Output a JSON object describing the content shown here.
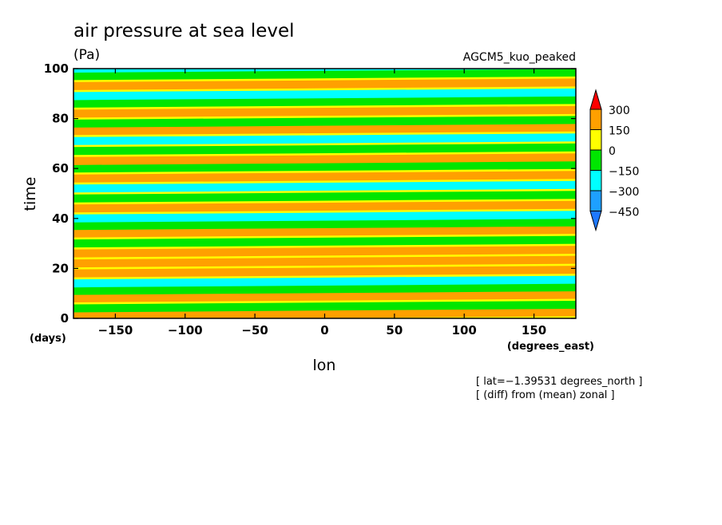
{
  "chart_data": {
    "type": "heatmap",
    "title": "air pressure at sea level",
    "units": "(Pa)",
    "model": "AGCM5_kuo_peaked",
    "xlabel": "lon",
    "ylabel": "time",
    "x_units": "(degrees_east)",
    "y_units": "(days)",
    "xlim": [
      -180,
      180
    ],
    "ylim": [
      0,
      100
    ],
    "x_ticks": [
      -150,
      -100,
      -50,
      0,
      50,
      100,
      150
    ],
    "x_tick_labels": [
      "−150",
      "−100",
      "−50",
      "0",
      "50",
      "100",
      "150"
    ],
    "y_ticks": [
      0,
      20,
      40,
      60,
      80,
      100
    ],
    "y_tick_labels": [
      "0",
      "20",
      "40",
      "60",
      "80",
      "100"
    ],
    "notes": [
      "[ lat=−1.39531 degrees_north ]",
      "[ (diff) from (mean) zonal ]"
    ],
    "colorbar": {
      "levels": [
        -450,
        -300,
        -150,
        0,
        150,
        300
      ],
      "level_labels": [
        "−450",
        "−300",
        "−150",
        "0",
        "150",
        "300"
      ],
      "colors": [
        "#1e78ff",
        "#1ea0ff",
        "#00ffff",
        "#00e600",
        "#ffff00",
        "#ffa000",
        "#ff0000"
      ],
      "extend": "both"
    },
    "pattern": "eastward-propagating anomaly bands; values mostly between -150 and 150 Pa",
    "band_slope_deg_per_day": 30,
    "bands": [
      {
        "t0": 1,
        "value": 150
      },
      {
        "t0": 4,
        "value": -150
      },
      {
        "t0": 8,
        "value": 150
      },
      {
        "t0": 11,
        "value": -150
      },
      {
        "t0": 14,
        "value": -300
      },
      {
        "t0": 18,
        "value": 150
      },
      {
        "t0": 22,
        "value": 150
      },
      {
        "t0": 26,
        "value": 150
      },
      {
        "t0": 30,
        "value": -150
      },
      {
        "t0": 34,
        "value": 150
      },
      {
        "t0": 37,
        "value": -150
      },
      {
        "t0": 40,
        "value": -300
      },
      {
        "t0": 44,
        "value": 150
      },
      {
        "t0": 48,
        "value": -150
      },
      {
        "t0": 52,
        "value": -300
      },
      {
        "t0": 56,
        "value": 150
      },
      {
        "t0": 60,
        "value": -150
      },
      {
        "t0": 63,
        "value": 150
      },
      {
        "t0": 67,
        "value": -150
      },
      {
        "t0": 71,
        "value": -300
      },
      {
        "t0": 75,
        "value": 150
      },
      {
        "t0": 78,
        "value": -150
      },
      {
        "t0": 82,
        "value": 150
      },
      {
        "t0": 86,
        "value": -150
      },
      {
        "t0": 89,
        "value": -300
      },
      {
        "t0": 93,
        "value": 150
      },
      {
        "t0": 97,
        "value": -150
      },
      {
        "t0": 100,
        "value": -300
      }
    ]
  }
}
